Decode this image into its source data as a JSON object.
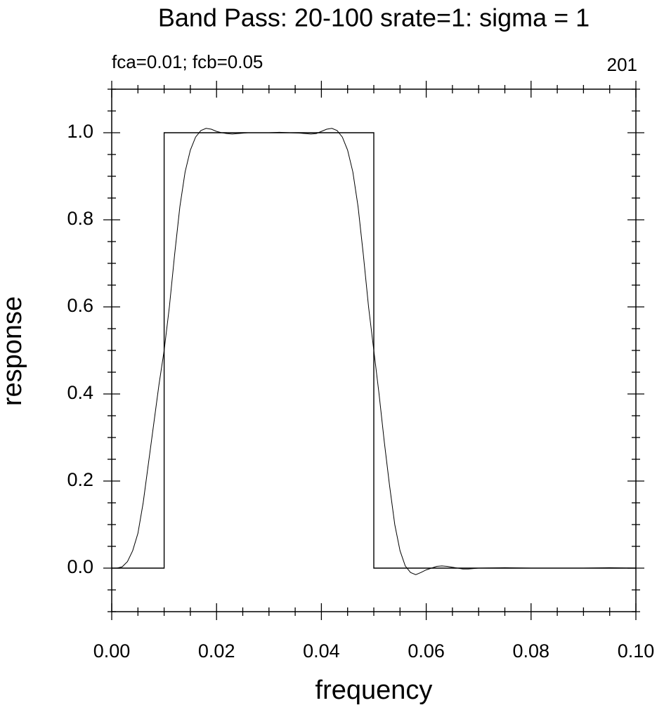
{
  "chart_data": {
    "type": "line",
    "title": "Band Pass: 20-100 srate=1: sigma = 1",
    "left_annotation": "fca=0.01; fcb=0.05",
    "right_annotation": "201",
    "xlabel": "frequency",
    "ylabel": "response",
    "xlim": [
      0,
      0.1
    ],
    "ylim": [
      -0.1,
      1.1
    ],
    "xticks": [
      {
        "value": 0,
        "label": "0.00"
      },
      {
        "value": 0.02,
        "label": "0.02"
      },
      {
        "value": 0.04,
        "label": "0.04"
      },
      {
        "value": 0.06,
        "label": "0.06"
      },
      {
        "value": 0.08,
        "label": "0.08"
      },
      {
        "value": 0.1,
        "label": "0.10"
      }
    ],
    "yticks": [
      {
        "value": 0,
        "label": "0.0"
      },
      {
        "value": 0.2,
        "label": "0.2"
      },
      {
        "value": 0.4,
        "label": "0.4"
      },
      {
        "value": 0.6,
        "label": "0.6"
      },
      {
        "value": 0.8,
        "label": "0.8"
      },
      {
        "value": 1,
        "label": "1.0"
      }
    ],
    "xminorticks": [
      0.005,
      0.01,
      0.015,
      0.025,
      0.03,
      0.035,
      0.045,
      0.05,
      0.055,
      0.065,
      0.07,
      0.075,
      0.085,
      0.09,
      0.095
    ],
    "yminorticks": [
      -0.1,
      -0.05,
      0.05,
      0.1,
      0.15,
      0.25,
      0.3,
      0.35,
      0.45,
      0.5,
      0.55,
      0.65,
      0.7,
      0.75,
      0.85,
      0.9,
      0.95,
      1.05,
      1.1
    ],
    "color": "#000000",
    "series": [
      {
        "x": [
          0,
          0.01,
          0.01,
          0.05,
          0.05,
          0.1
        ],
        "values": [
          0,
          0,
          1,
          1,
          0,
          0
        ]
      },
      {
        "x": [
          0,
          0.001,
          0.002,
          0.003,
          0.004,
          0.005,
          0.006,
          0.007,
          0.008,
          0.009,
          0.01,
          0.011,
          0.012,
          0.013,
          0.014,
          0.015,
          0.016,
          0.017,
          0.018,
          0.019,
          0.02,
          0.021,
          0.022,
          0.023,
          0.024,
          0.025,
          0.026,
          0.028,
          0.03,
          0.032,
          0.034,
          0.036,
          0.037,
          0.038,
          0.039,
          0.04,
          0.041,
          0.042,
          0.043,
          0.044,
          0.045,
          0.046,
          0.047,
          0.048,
          0.049,
          0.05,
          0.051,
          0.052,
          0.053,
          0.054,
          0.055,
          0.056,
          0.057,
          0.058,
          0.059,
          0.06,
          0.061,
          0.062,
          0.063,
          0.064,
          0.065,
          0.066,
          0.067,
          0.068,
          0.069,
          0.07,
          0.075,
          0.08,
          0.085,
          0.09,
          0.095,
          0.1
        ],
        "values": [
          0,
          0,
          0.003,
          0.015,
          0.04,
          0.08,
          0.15,
          0.24,
          0.33,
          0.42,
          0.5,
          0.6,
          0.72,
          0.83,
          0.91,
          0.96,
          0.99,
          1.005,
          1.01,
          1.008,
          1.003,
          1,
          0.998,
          0.997,
          0.998,
          0.999,
          1,
          1,
          1,
          1.001,
          1,
          0.999,
          0.998,
          0.997,
          0.998,
          1.003,
          1.008,
          1.01,
          1.005,
          0.99,
          0.96,
          0.91,
          0.83,
          0.72,
          0.6,
          0.5,
          0.4,
          0.29,
          0.19,
          0.1,
          0.04,
          0.005,
          -0.01,
          -0.015,
          -0.01,
          -0.004,
          0,
          0.004,
          0.005,
          0.004,
          0.002,
          0,
          -0.002,
          -0.002,
          -0.001,
          0,
          0.001,
          0,
          0,
          0,
          0.001,
          0
        ]
      }
    ]
  }
}
